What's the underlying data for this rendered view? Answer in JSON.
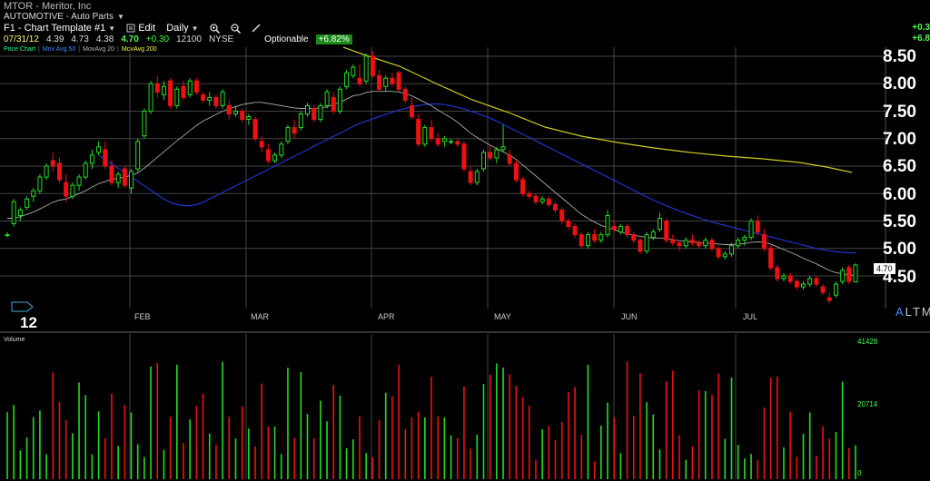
{
  "header": {
    "ticker_line": "MTOR - Meritor, Inc",
    "sector": "AUTOMOTIVE - Auto Parts",
    "template": "F1 - Chart Template #1",
    "edit_label": "Edit",
    "period": "Daily",
    "quote": {
      "date": "07/31/12",
      "open": "4.39",
      "high": "4.73",
      "low": "4.38",
      "last": "4.70",
      "change": "+0.30",
      "volume": "12100",
      "exchange": "NYSE"
    },
    "optionable": "Optionable",
    "pct_change": "+6.82%",
    "top_right_change": "+0.3",
    "top_right_pct": "+6.8"
  },
  "legend": {
    "price": "Price Chart",
    "ma50": "Mov Avg 50",
    "ma20": "MovAvg 20",
    "ma200": "MovAvg 200"
  },
  "axis": {
    "price_labels": [
      "8.50",
      "8.00",
      "7.50",
      "7.00",
      "6.50",
      "6.00",
      "5.50",
      "5.00",
      "4.50"
    ],
    "months": [
      "FEB",
      "MAR",
      "APR",
      "MAY",
      "JUN",
      "JUL"
    ],
    "year": "12",
    "last_price_badge": "4.70",
    "altm": [
      "A",
      "L",
      "T",
      "M"
    ]
  },
  "volume": {
    "title": "Volume",
    "labels": [
      "41428",
      "20714",
      "0"
    ]
  },
  "icons": {
    "zoom_in": "zoom-in-icon",
    "zoom_out": "zoom-out-icon",
    "draw": "pencil-icon",
    "edit": "edit-icon"
  },
  "colors": {
    "up": "#22dd22",
    "down": "#ee1111",
    "ma20": "#aaaaaa",
    "ma50": "#2233cc",
    "ma200": "#cccc22",
    "grid": "#444444"
  },
  "chart_data": {
    "type": "candlestick",
    "ylim": [
      4.0,
      8.75
    ],
    "ohlc": [
      [
        5.25,
        5.3,
        5.2,
        5.25
      ],
      [
        5.45,
        5.9,
        5.4,
        5.85
      ],
      [
        5.6,
        5.75,
        5.5,
        5.7
      ],
      [
        5.75,
        5.95,
        5.7,
        5.9
      ],
      [
        5.95,
        6.1,
        5.85,
        6.05
      ],
      [
        6.05,
        6.35,
        6.0,
        6.3
      ],
      [
        6.3,
        6.55,
        6.25,
        6.5
      ],
      [
        6.6,
        6.75,
        6.4,
        6.5
      ],
      [
        6.55,
        6.65,
        6.2,
        6.25
      ],
      [
        6.2,
        6.35,
        5.85,
        5.95
      ],
      [
        5.95,
        6.2,
        5.9,
        6.15
      ],
      [
        6.15,
        6.35,
        6.05,
        6.3
      ],
      [
        6.3,
        6.6,
        6.25,
        6.55
      ],
      [
        6.55,
        6.8,
        6.45,
        6.7
      ],
      [
        6.75,
        6.95,
        6.7,
        6.85
      ],
      [
        6.8,
        6.95,
        6.45,
        6.5
      ],
      [
        6.5,
        6.6,
        6.15,
        6.2
      ],
      [
        6.2,
        6.4,
        6.1,
        6.35
      ],
      [
        6.45,
        6.5,
        6.1,
        6.15
      ],
      [
        6.1,
        6.45,
        6.0,
        6.4
      ],
      [
        6.45,
        7.0,
        6.4,
        6.95
      ],
      [
        7.05,
        7.55,
        7.0,
        7.5
      ],
      [
        7.5,
        8.05,
        7.45,
        8.0
      ],
      [
        8.0,
        8.15,
        7.75,
        7.85
      ],
      [
        7.8,
        8.05,
        7.7,
        7.95
      ],
      [
        8.05,
        8.1,
        7.55,
        7.6
      ],
      [
        7.6,
        7.95,
        7.55,
        7.9
      ],
      [
        7.95,
        8.05,
        7.7,
        7.75
      ],
      [
        7.8,
        8.1,
        7.75,
        8.05
      ],
      [
        8.05,
        8.1,
        7.8,
        7.85
      ],
      [
        7.8,
        7.85,
        7.65,
        7.7
      ],
      [
        7.7,
        7.85,
        7.6,
        7.75
      ],
      [
        7.75,
        7.8,
        7.55,
        7.6
      ],
      [
        7.6,
        7.9,
        7.55,
        7.85
      ],
      [
        7.6,
        7.7,
        7.35,
        7.45
      ],
      [
        7.45,
        7.6,
        7.4,
        7.5
      ],
      [
        7.5,
        7.55,
        7.3,
        7.35
      ],
      [
        7.35,
        7.45,
        7.25,
        7.4
      ],
      [
        7.35,
        7.4,
        6.95,
        7.0
      ],
      [
        6.95,
        7.05,
        6.75,
        6.85
      ],
      [
        6.8,
        6.9,
        6.55,
        6.6
      ],
      [
        6.6,
        6.75,
        6.55,
        6.7
      ],
      [
        6.7,
        6.95,
        6.65,
        6.9
      ],
      [
        6.95,
        7.25,
        6.9,
        7.2
      ],
      [
        7.2,
        7.35,
        7.0,
        7.1
      ],
      [
        7.2,
        7.5,
        7.15,
        7.45
      ],
      [
        7.45,
        7.65,
        7.4,
        7.6
      ],
      [
        7.55,
        7.6,
        7.3,
        7.35
      ],
      [
        7.35,
        7.65,
        7.3,
        7.6
      ],
      [
        7.6,
        7.9,
        7.55,
        7.85
      ],
      [
        7.75,
        7.85,
        7.45,
        7.5
      ],
      [
        7.5,
        7.95,
        7.45,
        7.9
      ],
      [
        7.95,
        8.25,
        7.9,
        8.2
      ],
      [
        8.15,
        8.35,
        8.1,
        8.3
      ],
      [
        8.1,
        8.35,
        7.95,
        8.0
      ],
      [
        8.05,
        8.55,
        8.0,
        8.5
      ],
      [
        8.5,
        8.6,
        8.1,
        8.15
      ],
      [
        8.15,
        8.25,
        7.85,
        7.9
      ],
      [
        7.95,
        8.15,
        7.85,
        8.1
      ],
      [
        8.1,
        8.2,
        7.95,
        8.0
      ],
      [
        8.2,
        8.25,
        7.85,
        7.9
      ],
      [
        7.9,
        7.95,
        7.65,
        7.7
      ],
      [
        7.6,
        7.75,
        7.35,
        7.4
      ],
      [
        7.35,
        7.45,
        6.85,
        6.9
      ],
      [
        6.9,
        7.25,
        6.85,
        7.2
      ],
      [
        7.2,
        7.35,
        6.95,
        7.0
      ],
      [
        7.0,
        7.1,
        6.85,
        6.9
      ],
      [
        6.95,
        7.05,
        6.85,
        7.0
      ],
      [
        6.95,
        7.0,
        6.9,
        6.95
      ],
      [
        6.95,
        7.0,
        6.85,
        6.9
      ],
      [
        6.9,
        6.95,
        6.4,
        6.45
      ],
      [
        6.4,
        6.5,
        6.15,
        6.2
      ],
      [
        6.2,
        6.45,
        6.15,
        6.4
      ],
      [
        6.45,
        6.8,
        6.4,
        6.75
      ],
      [
        6.75,
        6.9,
        6.6,
        6.65
      ],
      [
        6.65,
        6.85,
        6.55,
        6.8
      ],
      [
        6.8,
        7.25,
        6.75,
        6.85
      ],
      [
        6.7,
        6.8,
        6.5,
        6.55
      ],
      [
        6.55,
        6.6,
        6.2,
        6.25
      ],
      [
        6.25,
        6.3,
        5.95,
        6.0
      ],
      [
        6.0,
        6.05,
        5.9,
        5.95
      ],
      [
        5.95,
        6.0,
        5.8,
        5.85
      ],
      [
        5.85,
        5.95,
        5.8,
        5.9
      ],
      [
        5.9,
        5.95,
        5.75,
        5.8
      ],
      [
        5.8,
        5.85,
        5.65,
        5.7
      ],
      [
        5.7,
        5.75,
        5.45,
        5.5
      ],
      [
        5.5,
        5.55,
        5.35,
        5.4
      ],
      [
        5.4,
        5.45,
        5.2,
        5.25
      ],
      [
        5.25,
        5.3,
        5.0,
        5.05
      ],
      [
        5.05,
        5.3,
        5.0,
        5.25
      ],
      [
        5.25,
        5.35,
        5.1,
        5.15
      ],
      [
        5.15,
        5.3,
        5.1,
        5.25
      ],
      [
        5.25,
        5.7,
        5.2,
        5.6
      ],
      [
        5.4,
        5.5,
        5.3,
        5.35
      ],
      [
        5.3,
        5.45,
        5.25,
        5.4
      ],
      [
        5.4,
        5.45,
        5.2,
        5.25
      ],
      [
        5.25,
        5.3,
        5.1,
        5.15
      ],
      [
        5.15,
        5.2,
        4.9,
        4.95
      ],
      [
        4.95,
        5.3,
        4.9,
        5.25
      ],
      [
        5.2,
        5.35,
        5.15,
        5.3
      ],
      [
        5.35,
        5.65,
        5.3,
        5.55
      ],
      [
        5.5,
        5.55,
        5.1,
        5.15
      ],
      [
        5.15,
        5.25,
        5.05,
        5.1
      ],
      [
        5.1,
        5.15,
        4.95,
        5.05
      ],
      [
        5.05,
        5.2,
        5.0,
        5.15
      ],
      [
        5.15,
        5.25,
        5.05,
        5.1
      ],
      [
        5.1,
        5.15,
        5.0,
        5.05
      ],
      [
        5.05,
        5.2,
        5.0,
        5.15
      ],
      [
        5.15,
        5.2,
        4.95,
        5.0
      ],
      [
        5.0,
        5.05,
        4.8,
        4.85
      ],
      [
        4.85,
        4.95,
        4.8,
        4.9
      ],
      [
        4.9,
        5.1,
        4.85,
        5.05
      ],
      [
        5.05,
        5.2,
        5.0,
        5.15
      ],
      [
        5.15,
        5.25,
        5.05,
        5.2
      ],
      [
        5.2,
        5.55,
        5.15,
        5.5
      ],
      [
        5.5,
        5.6,
        5.25,
        5.3
      ],
      [
        5.25,
        5.35,
        4.95,
        5.0
      ],
      [
        5.0,
        5.05,
        4.6,
        4.65
      ],
      [
        4.65,
        4.7,
        4.4,
        4.45
      ],
      [
        4.45,
        4.55,
        4.4,
        4.5
      ],
      [
        4.5,
        4.55,
        4.35,
        4.4
      ],
      [
        4.4,
        4.45,
        4.25,
        4.3
      ],
      [
        4.3,
        4.4,
        4.25,
        4.35
      ],
      [
        4.35,
        4.5,
        4.3,
        4.45
      ],
      [
        4.45,
        4.5,
        4.3,
        4.35
      ],
      [
        4.3,
        4.35,
        4.15,
        4.2
      ],
      [
        4.1,
        4.2,
        4.0,
        4.05
      ],
      [
        4.15,
        4.4,
        4.1,
        4.35
      ],
      [
        4.4,
        4.65,
        4.35,
        4.6
      ],
      [
        4.65,
        4.7,
        4.35,
        4.4
      ],
      [
        4.39,
        4.73,
        4.38,
        4.7
      ]
    ],
    "ma20": [
      5.55,
      5.55,
      5.58,
      5.62,
      5.66,
      5.72,
      5.78,
      5.84,
      5.88,
      5.9,
      5.95,
      6.0,
      6.05,
      6.12,
      6.18,
      6.22,
      6.26,
      6.28,
      6.3,
      6.33,
      6.38,
      6.46,
      6.56,
      6.66,
      6.76,
      6.86,
      6.96,
      7.05,
      7.15,
      7.24,
      7.32,
      7.38,
      7.44,
      7.5,
      7.55,
      7.58,
      7.62,
      7.64,
      7.66,
      7.66,
      7.64,
      7.62,
      7.6,
      7.58,
      7.56,
      7.55,
      7.55,
      7.55,
      7.56,
      7.58,
      7.62,
      7.66,
      7.72,
      7.78,
      7.8,
      7.84,
      7.86,
      7.86,
      7.86,
      7.86,
      7.85,
      7.82,
      7.78,
      7.72,
      7.66,
      7.6,
      7.52,
      7.45,
      7.38,
      7.3,
      7.2,
      7.1,
      7.02,
      6.95,
      6.88,
      6.82,
      6.76,
      6.7,
      6.62,
      6.52,
      6.42,
      6.32,
      6.22,
      6.12,
      6.02,
      5.92,
      5.82,
      5.72,
      5.62,
      5.55,
      5.48,
      5.42,
      5.38,
      5.34,
      5.3,
      5.27,
      5.24,
      5.22,
      5.2,
      5.19,
      5.19,
      5.18,
      5.16,
      5.14,
      5.13,
      5.12,
      5.11,
      5.1,
      5.09,
      5.08,
      5.07,
      5.07,
      5.08,
      5.09,
      5.11,
      5.12,
      5.11,
      5.08,
      5.03,
      4.98,
      4.93,
      4.88,
      4.82,
      4.77,
      4.72,
      4.66,
      4.6,
      4.56,
      4.54,
      4.52,
      4.51
    ],
    "ma50": [
      6.7,
      6.62,
      6.54,
      6.46,
      6.38,
      6.3,
      6.22,
      6.14,
      6.06,
      5.98,
      5.9,
      5.84,
      5.8,
      5.78,
      5.78,
      5.8,
      5.84,
      5.9,
      5.96,
      6.02,
      6.08,
      6.14,
      6.2,
      6.26,
      6.32,
      6.38,
      6.44,
      6.5,
      6.56,
      6.62,
      6.68,
      6.74,
      6.8,
      6.86,
      6.92,
      6.98,
      7.04,
      7.1,
      7.16,
      7.22,
      7.28,
      7.32,
      7.36,
      7.4,
      7.44,
      7.48,
      7.52,
      7.55,
      7.58,
      7.6,
      7.62,
      7.63,
      7.63,
      7.62,
      7.6,
      7.57,
      7.54,
      7.5,
      7.46,
      7.42,
      7.37,
      7.32,
      7.26,
      7.2,
      7.14,
      7.08,
      7.02,
      6.96,
      6.9,
      6.84,
      6.78,
      6.72,
      6.66,
      6.6,
      6.54,
      6.48,
      6.42,
      6.36,
      6.3,
      6.24,
      6.18,
      6.12,
      6.06,
      6.0,
      5.94,
      5.88,
      5.83,
      5.78,
      5.73,
      5.68,
      5.64,
      5.6,
      5.56,
      5.52,
      5.48,
      5.45,
      5.42,
      5.39,
      5.36,
      5.33,
      5.3,
      5.27,
      5.24,
      5.21,
      5.18,
      5.15,
      5.12,
      5.09,
      5.06,
      5.03,
      5.0,
      4.98,
      4.96,
      4.94,
      4.93,
      4.92,
      4.92
    ]
  }
}
